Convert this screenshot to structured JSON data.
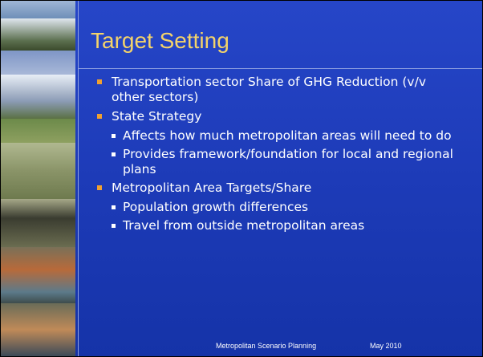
{
  "slide": {
    "title": "Target Setting",
    "bullets": [
      {
        "text": "Transportation sector Share of GHG Reduction (v/v other sectors)",
        "children": []
      },
      {
        "text": "State Strategy",
        "children": [
          "Affects how much metropolitan areas will need to do",
          "Provides framework/foundation for local and regional plans"
        ]
      },
      {
        "text": "Metropolitan Area Targets/Share",
        "children": [
          "Population growth differences",
          "Travel from outside metropolitan areas"
        ]
      }
    ],
    "footer": {
      "center": "Metropolitan Scenario Planning",
      "right": "May 2010"
    }
  }
}
